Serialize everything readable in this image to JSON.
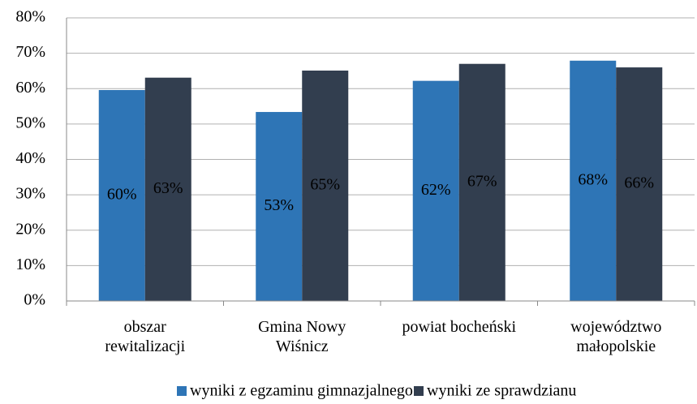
{
  "chart_data": {
    "type": "bar",
    "categories": [
      "obszar\nrewitalizacji",
      "Gmina Nowy\nWiśnicz",
      "powiat bocheński",
      "województwo\nmałopolskie"
    ],
    "series": [
      {
        "name": "wyniki z egzaminu gimnazjalnego",
        "color": "#2e75b6",
        "values": [
          59.6,
          53.4,
          62.2,
          67.9
        ],
        "value_labels": [
          "60%",
          "53%",
          "62%",
          "68%"
        ]
      },
      {
        "name": "wyniki ze sprawdzianu",
        "color": "#323e4f",
        "values": [
          63.1,
          65.1,
          67.0,
          66.0
        ],
        "value_labels": [
          "63%",
          "65%",
          "67%",
          "66%"
        ]
      }
    ],
    "ylim": [
      0,
      80
    ],
    "yticks": [
      {
        "value": 0,
        "label": "0%"
      },
      {
        "value": 10,
        "label": "10%"
      },
      {
        "value": 20,
        "label": "20%"
      },
      {
        "value": 30,
        "label": "30%"
      },
      {
        "value": 40,
        "label": "40%"
      },
      {
        "value": 50,
        "label": "50%"
      },
      {
        "value": 60,
        "label": "60%"
      },
      {
        "value": 70,
        "label": "70%"
      },
      {
        "value": 80,
        "label": "80%"
      }
    ],
    "grid": true,
    "legend": "bottom"
  }
}
